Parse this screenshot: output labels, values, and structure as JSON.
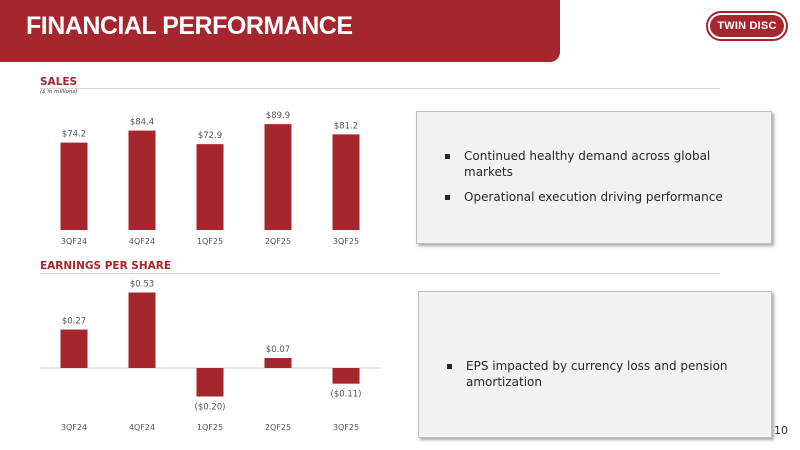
{
  "header": {
    "title": "FINANCIAL PERFORMANCE",
    "logo_text": "TWIN DISC"
  },
  "sales": {
    "title": "SALES",
    "subtitle": "($ in millions)",
    "bullets": [
      "Continued healthy demand across global markets",
      "Operational execution driving performance"
    ]
  },
  "eps": {
    "title": "EARNINGS PER SHARE",
    "bullets": [
      "EPS impacted by currency loss and pension amortization"
    ]
  },
  "page_number": "10",
  "chart_data": [
    {
      "type": "bar",
      "title": "SALES",
      "subtitle": "($ in millions)",
      "categories": [
        "3QF24",
        "4QF24",
        "1QF25",
        "2QF25",
        "3QF25"
      ],
      "values": [
        74.2,
        84.4,
        72.9,
        89.9,
        81.2
      ],
      "labels": [
        "$74.2",
        "$84.4",
        "$72.9",
        "$89.9",
        "$81.2"
      ],
      "ylim": [
        0,
        90
      ],
      "grid": false,
      "color": "#a6262e"
    },
    {
      "type": "bar",
      "title": "EARNINGS PER SHARE",
      "categories": [
        "3QF24",
        "4QF24",
        "1QF25",
        "2QF25",
        "3QF25"
      ],
      "values": [
        0.27,
        0.53,
        -0.2,
        0.07,
        -0.11
      ],
      "labels": [
        "$0.27",
        "$0.53",
        "($0.20)",
        "$0.07",
        "($0.11)"
      ],
      "ylim": [
        -0.2,
        0.53
      ],
      "grid": false,
      "color": "#a6262e"
    }
  ]
}
